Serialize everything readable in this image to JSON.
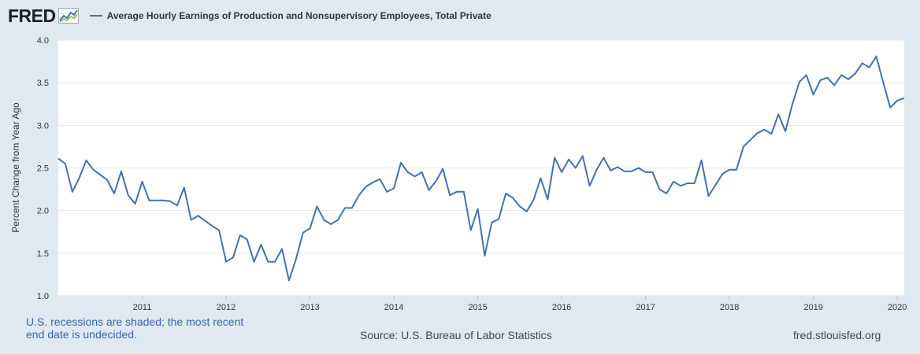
{
  "header": {
    "logo_text": "FRED",
    "legend_label": "Average Hourly Earnings of Production and Nonsupervisory Employees, Total Private"
  },
  "footer": {
    "recession_note": "U.S. recessions are shaded; the most recent end date is undecided.",
    "source": "Source: U.S. Bureau of Labor Statistics",
    "site": "fred.stlouisfed.org"
  },
  "colors": {
    "background": "#e1e9f0",
    "plot_background": "#ffffff",
    "series": "#4572a7",
    "gridline": "#e6e6e6",
    "note": "#3366aa"
  },
  "chart_data": {
    "type": "line",
    "title": "",
    "xlabel": "",
    "ylabel": "Percent Change from Year Ago",
    "ylim": [
      1.0,
      4.0
    ],
    "xlim": [
      "2010-01",
      "2020-02"
    ],
    "yticks": [
      "1.0",
      "1.5",
      "2.0",
      "2.5",
      "3.0",
      "3.5",
      "4.0"
    ],
    "xticks": [
      "2011",
      "2012",
      "2013",
      "2014",
      "2015",
      "2016",
      "2017",
      "2018",
      "2019",
      "2020"
    ],
    "grid": true,
    "legend": "top-left",
    "series": [
      {
        "name": "Average Hourly Earnings of Production and Nonsupervisory Employees, Total Private",
        "x": [
          "2010-01",
          "2010-02",
          "2010-03",
          "2010-04",
          "2010-05",
          "2010-06",
          "2010-07",
          "2010-08",
          "2010-09",
          "2010-10",
          "2010-11",
          "2010-12",
          "2011-01",
          "2011-02",
          "2011-03",
          "2011-04",
          "2011-05",
          "2011-06",
          "2011-07",
          "2011-08",
          "2011-09",
          "2011-10",
          "2011-11",
          "2011-12",
          "2012-01",
          "2012-02",
          "2012-03",
          "2012-04",
          "2012-05",
          "2012-06",
          "2012-07",
          "2012-08",
          "2012-09",
          "2012-10",
          "2012-11",
          "2012-12",
          "2013-01",
          "2013-02",
          "2013-03",
          "2013-04",
          "2013-05",
          "2013-06",
          "2013-07",
          "2013-08",
          "2013-09",
          "2013-10",
          "2013-11",
          "2013-12",
          "2014-01",
          "2014-02",
          "2014-03",
          "2014-04",
          "2014-05",
          "2014-06",
          "2014-07",
          "2014-08",
          "2014-09",
          "2014-10",
          "2014-11",
          "2014-12",
          "2015-01",
          "2015-02",
          "2015-03",
          "2015-04",
          "2015-05",
          "2015-06",
          "2015-07",
          "2015-08",
          "2015-09",
          "2015-10",
          "2015-11",
          "2015-12",
          "2016-01",
          "2016-02",
          "2016-03",
          "2016-04",
          "2016-05",
          "2016-06",
          "2016-07",
          "2016-08",
          "2016-09",
          "2016-10",
          "2016-11",
          "2016-12",
          "2017-01",
          "2017-02",
          "2017-03",
          "2017-04",
          "2017-05",
          "2017-06",
          "2017-07",
          "2017-08",
          "2017-09",
          "2017-10",
          "2017-11",
          "2017-12",
          "2018-01",
          "2018-02",
          "2018-03",
          "2018-04",
          "2018-05",
          "2018-06",
          "2018-07",
          "2018-08",
          "2018-09",
          "2018-10",
          "2018-11",
          "2018-12",
          "2019-01",
          "2019-02",
          "2019-03",
          "2019-04",
          "2019-05",
          "2019-06",
          "2019-07",
          "2019-08",
          "2019-09",
          "2019-10",
          "2019-11",
          "2019-12",
          "2020-01",
          "2020-02"
        ],
        "values": [
          2.61,
          2.55,
          2.22,
          2.38,
          2.59,
          2.48,
          2.42,
          2.36,
          2.2,
          2.46,
          2.18,
          2.08,
          2.34,
          2.12,
          2.12,
          2.12,
          2.11,
          2.06,
          2.27,
          1.89,
          1.94,
          1.88,
          1.82,
          1.77,
          1.4,
          1.45,
          1.71,
          1.66,
          1.4,
          1.6,
          1.4,
          1.4,
          1.55,
          1.18,
          1.43,
          1.74,
          1.79,
          2.05,
          1.89,
          1.84,
          1.89,
          2.03,
          2.03,
          2.18,
          2.28,
          2.33,
          2.37,
          2.22,
          2.26,
          2.56,
          2.45,
          2.4,
          2.45,
          2.24,
          2.34,
          2.49,
          2.18,
          2.22,
          2.22,
          1.77,
          2.02,
          1.47,
          1.86,
          1.9,
          2.2,
          2.15,
          2.05,
          1.99,
          2.13,
          2.38,
          2.13,
          2.62,
          2.45,
          2.6,
          2.5,
          2.64,
          2.29,
          2.48,
          2.62,
          2.47,
          2.51,
          2.46,
          2.46,
          2.5,
          2.45,
          2.45,
          2.25,
          2.2,
          2.34,
          2.29,
          2.32,
          2.32,
          2.59,
          2.17,
          2.3,
          2.43,
          2.48,
          2.48,
          2.75,
          2.83,
          2.91,
          2.95,
          2.9,
          3.13,
          2.93,
          3.25,
          3.51,
          3.59,
          3.36,
          3.53,
          3.56,
          3.47,
          3.59,
          3.54,
          3.61,
          3.73,
          3.68,
          3.81,
          3.5,
          3.21,
          3.29,
          3.32
        ]
      }
    ]
  }
}
